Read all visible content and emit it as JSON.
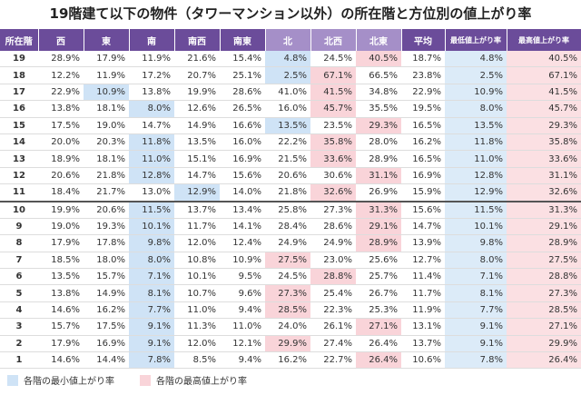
{
  "title": "19階建て以下の物件（タワーマンション以外）の所在階と方位別の値上がり率",
  "table": {
    "header": [
      "所在階",
      "西",
      "東",
      "南",
      "南西",
      "南東",
      "北",
      "北西",
      "北東",
      "平均",
      "最低値上がり率",
      "最高値上がり率"
    ],
    "rows": [
      [
        "19",
        "28.9%",
        "17.9%",
        "11.9%",
        "21.6%",
        "15.4%",
        "4.8%",
        "24.5%",
        "40.5%",
        "18.7%",
        "4.8%",
        "40.5%"
      ],
      [
        "18",
        "12.2%",
        "11.9%",
        "17.2%",
        "20.7%",
        "25.1%",
        "2.5%",
        "67.1%",
        "66.5%",
        "23.8%",
        "2.5%",
        "67.1%"
      ],
      [
        "17",
        "22.9%",
        "10.9%",
        "13.8%",
        "19.9%",
        "28.6%",
        "41.0%",
        "41.5%",
        "34.8%",
        "22.9%",
        "10.9%",
        "41.5%"
      ],
      [
        "16",
        "13.8%",
        "18.1%",
        "8.0%",
        "12.6%",
        "26.5%",
        "16.0%",
        "45.7%",
        "35.5%",
        "19.5%",
        "8.0%",
        "45.7%"
      ],
      [
        "15",
        "17.5%",
        "19.0%",
        "14.7%",
        "14.9%",
        "16.6%",
        "13.5%",
        "23.5%",
        "29.3%",
        "16.5%",
        "13.5%",
        "29.3%"
      ],
      [
        "14",
        "20.0%",
        "20.3%",
        "11.8%",
        "13.5%",
        "16.0%",
        "22.2%",
        "35.8%",
        "28.0%",
        "16.2%",
        "11.8%",
        "35.8%"
      ],
      [
        "13",
        "18.9%",
        "18.1%",
        "11.0%",
        "15.1%",
        "16.9%",
        "21.5%",
        "33.6%",
        "28.9%",
        "16.5%",
        "11.0%",
        "33.6%"
      ],
      [
        "12",
        "20.6%",
        "21.8%",
        "12.8%",
        "14.7%",
        "15.6%",
        "20.6%",
        "30.6%",
        "31.1%",
        "16.9%",
        "12.8%",
        "31.1%"
      ],
      [
        "11",
        "18.4%",
        "21.7%",
        "13.0%",
        "12.9%",
        "14.0%",
        "21.8%",
        "32.6%",
        "26.9%",
        "15.9%",
        "12.9%",
        "32.6%"
      ],
      [
        "10",
        "19.9%",
        "20.6%",
        "11.5%",
        "13.7%",
        "13.4%",
        "25.8%",
        "27.3%",
        "31.3%",
        "15.6%",
        "11.5%",
        "31.3%"
      ],
      [
        "9",
        "19.0%",
        "19.3%",
        "10.1%",
        "11.7%",
        "14.1%",
        "28.4%",
        "28.6%",
        "29.1%",
        "14.7%",
        "10.1%",
        "29.1%"
      ],
      [
        "8",
        "17.9%",
        "17.8%",
        "9.8%",
        "12.0%",
        "12.4%",
        "24.9%",
        "24.9%",
        "28.9%",
        "13.9%",
        "9.8%",
        "28.9%"
      ],
      [
        "7",
        "18.5%",
        "18.0%",
        "8.0%",
        "10.8%",
        "10.9%",
        "27.5%",
        "23.0%",
        "25.6%",
        "12.7%",
        "8.0%",
        "27.5%"
      ],
      [
        "6",
        "13.5%",
        "15.7%",
        "7.1%",
        "10.1%",
        "9.5%",
        "24.5%",
        "28.8%",
        "25.7%",
        "11.4%",
        "7.1%",
        "28.8%"
      ],
      [
        "5",
        "13.8%",
        "14.9%",
        "8.1%",
        "10.7%",
        "9.6%",
        "27.3%",
        "25.4%",
        "26.7%",
        "11.7%",
        "8.1%",
        "27.3%"
      ],
      [
        "4",
        "14.6%",
        "16.2%",
        "7.7%",
        "11.0%",
        "9.4%",
        "28.5%",
        "22.3%",
        "25.3%",
        "11.9%",
        "7.7%",
        "28.5%"
      ],
      [
        "3",
        "15.7%",
        "17.5%",
        "9.1%",
        "11.3%",
        "11.0%",
        "24.0%",
        "26.1%",
        "27.1%",
        "13.1%",
        "9.1%",
        "27.1%"
      ],
      [
        "2",
        "17.9%",
        "16.9%",
        "9.1%",
        "12.0%",
        "12.1%",
        "29.9%",
        "27.4%",
        "26.4%",
        "13.7%",
        "9.1%",
        "29.9%"
      ],
      [
        "1",
        "14.6%",
        "14.4%",
        "7.8%",
        "8.5%",
        "9.4%",
        "16.2%",
        "22.7%",
        "26.4%",
        "10.6%",
        "7.8%",
        "26.4%"
      ]
    ]
  },
  "legend": [
    "各階の最小値上がり率",
    "各階の最高値上がり率"
  ]
}
